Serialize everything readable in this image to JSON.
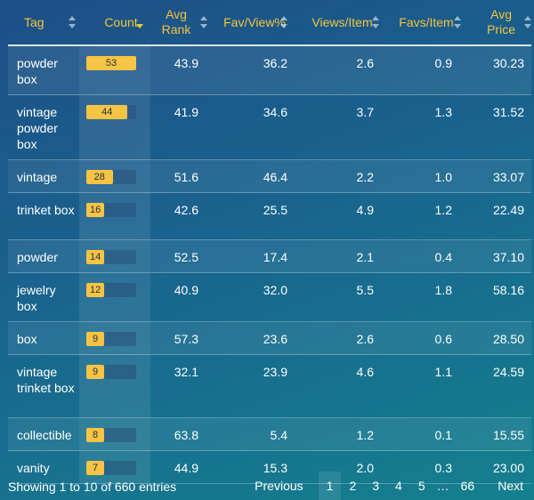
{
  "columns": [
    {
      "line1": "Tag",
      "line2": ""
    },
    {
      "line1": "Count",
      "line2": ""
    },
    {
      "line1": "Avg",
      "line2": "Rank"
    },
    {
      "line1": "Fav/View%",
      "line2": ""
    },
    {
      "line1": "Views/Item",
      "line2": ""
    },
    {
      "line1": "Favs/Item",
      "line2": ""
    },
    {
      "line1": "Avg",
      "line2": "Price"
    }
  ],
  "count_max": 53,
  "rows": [
    {
      "tag": "powder box",
      "count": 53,
      "avg_rank": "43.9",
      "fav_view": "36.2",
      "views_item": "2.6",
      "favs_item": "0.9",
      "avg_price": "30.23"
    },
    {
      "tag": "vintage powder box",
      "count": 44,
      "avg_rank": "41.9",
      "fav_view": "34.6",
      "views_item": "3.7",
      "favs_item": "1.3",
      "avg_price": "31.52"
    },
    {
      "tag": "vintage",
      "count": 28,
      "avg_rank": "51.6",
      "fav_view": "46.4",
      "views_item": "2.2",
      "favs_item": "1.0",
      "avg_price": "33.07"
    },
    {
      "tag": "trinket box",
      "count": 16,
      "avg_rank": "42.6",
      "fav_view": "25.5",
      "views_item": "4.9",
      "favs_item": "1.2",
      "avg_price": "22.49"
    },
    {
      "tag": "powder",
      "count": 14,
      "avg_rank": "52.5",
      "fav_view": "17.4",
      "views_item": "2.1",
      "favs_item": "0.4",
      "avg_price": "37.10"
    },
    {
      "tag": "jewelry box",
      "count": 12,
      "avg_rank": "40.9",
      "fav_view": "32.0",
      "views_item": "5.5",
      "favs_item": "1.8",
      "avg_price": "58.16"
    },
    {
      "tag": "box",
      "count": 9,
      "avg_rank": "57.3",
      "fav_view": "23.6",
      "views_item": "2.6",
      "favs_item": "0.6",
      "avg_price": "28.50"
    },
    {
      "tag": "vintage trinket box",
      "count": 9,
      "avg_rank": "32.1",
      "fav_view": "23.9",
      "views_item": "4.6",
      "favs_item": "1.1",
      "avg_price": "24.59"
    },
    {
      "tag": "collectible",
      "count": 8,
      "avg_rank": "63.8",
      "fav_view": "5.4",
      "views_item": "1.2",
      "favs_item": "0.1",
      "avg_price": "15.55"
    },
    {
      "tag": "vanity",
      "count": 7,
      "avg_rank": "44.9",
      "fav_view": "15.3",
      "views_item": "2.0",
      "favs_item": "0.3",
      "avg_price": "23.00"
    }
  ],
  "footer": {
    "info": "Showing 1 to 10 of 660 entries",
    "previous": "Previous",
    "next": "Next",
    "pages": [
      "1",
      "2",
      "3",
      "4",
      "5"
    ],
    "ellipsis": "…",
    "last_page": "66",
    "current_page": "1"
  },
  "colors": {
    "accent": "#f3c53d",
    "bar": "#f7c443"
  }
}
